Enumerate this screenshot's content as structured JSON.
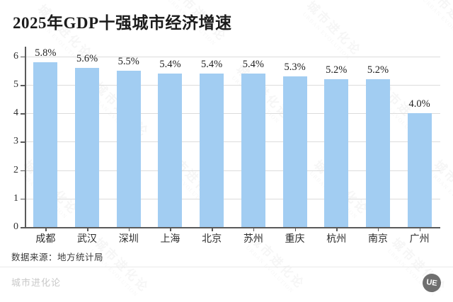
{
  "title": "2025年GDP十强城市经济增速",
  "source_note": "数据来源：地方统计局",
  "footer": {
    "brand": "城市进化论",
    "logo_text": "UE"
  },
  "watermark_text": "城市进化论",
  "watermark_subtext": "URBAN EVOLUTION",
  "colors": {
    "bar": "#A2CDF2",
    "axis": "#5a5a5a",
    "grid": "#dcdcdc",
    "title_text": "#1c1c1c",
    "label_text": "#2b2b2b",
    "footer_text": "#c9c9c9",
    "logo_bg": "#6f6f6f",
    "background": "#ffffff"
  },
  "chart_data": {
    "type": "bar",
    "title": "2025年GDP十强城市经济增速",
    "categories": [
      "成都",
      "武汉",
      "深圳",
      "上海",
      "北京",
      "苏州",
      "重庆",
      "杭州",
      "南京",
      "广州"
    ],
    "values": [
      5.8,
      5.6,
      5.5,
      5.4,
      5.4,
      5.4,
      5.3,
      5.2,
      5.2,
      4.0
    ],
    "value_labels": [
      "5.8%",
      "5.6%",
      "5.5%",
      "5.4%",
      "5.4%",
      "5.4%",
      "5.3%",
      "5.2%",
      "5.2%",
      "4.0%"
    ],
    "xlabel": "",
    "ylabel": "",
    "ylim": [
      0,
      6.3
    ],
    "yticks": [
      0,
      1,
      2,
      3,
      4,
      5,
      6
    ],
    "grid": true,
    "legend": false
  }
}
